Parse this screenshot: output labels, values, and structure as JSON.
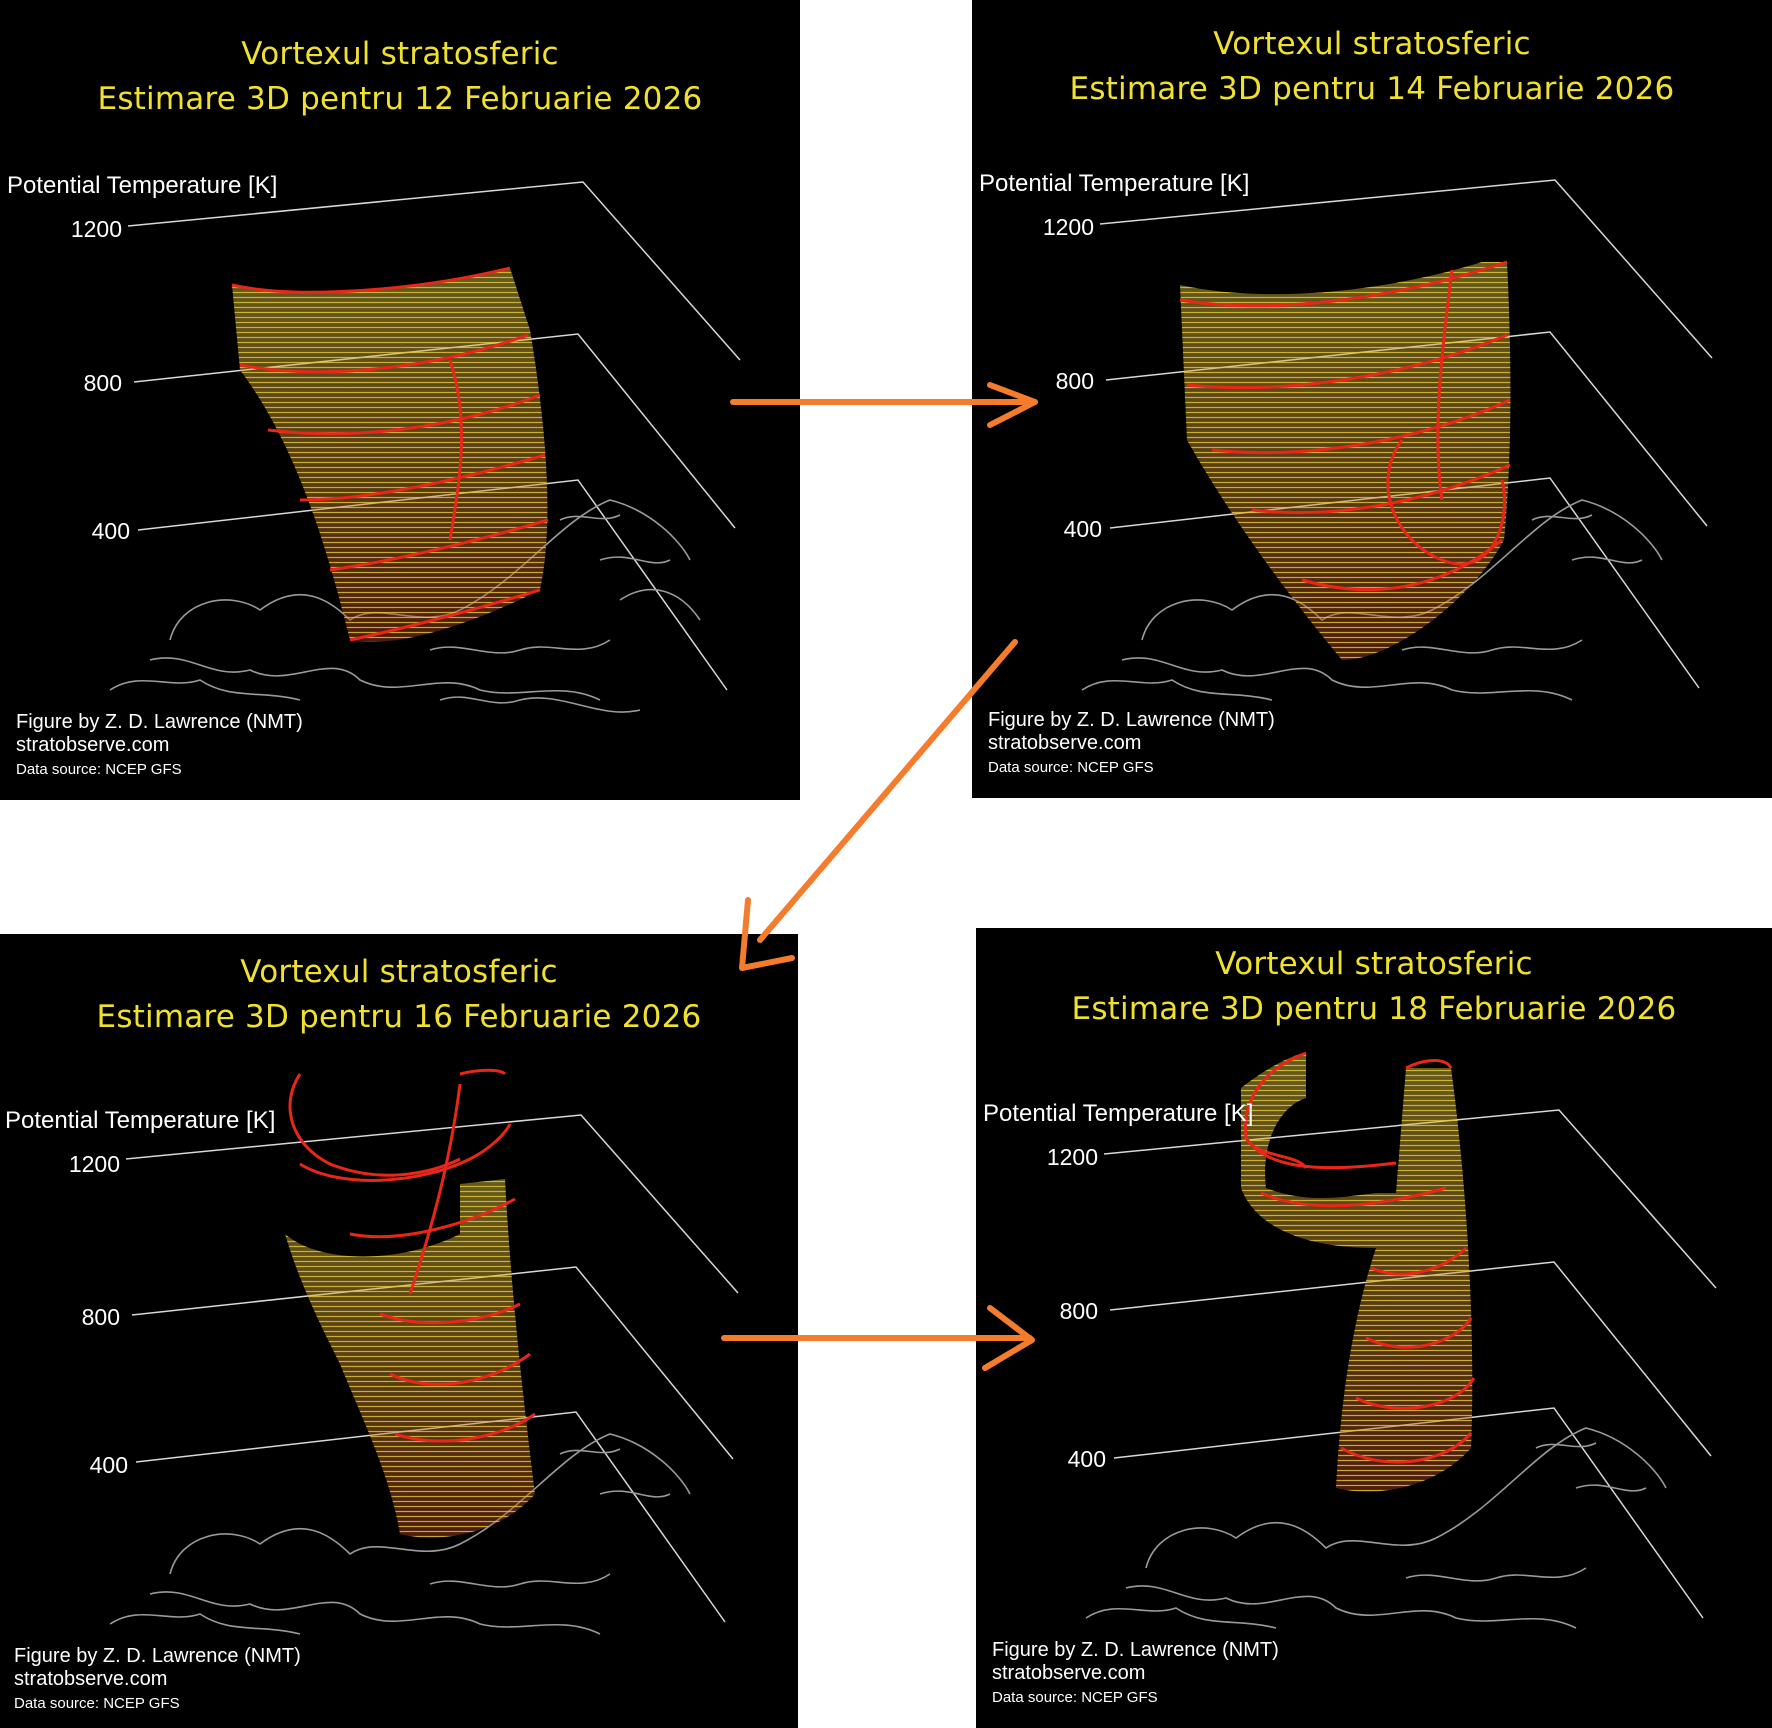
{
  "colors": {
    "title_yellow": "#f0e130",
    "arrow_orange": "#f47c2c",
    "contour_red": "#e8261a",
    "contour_yellow": "#d9c23a",
    "grid_white": "#d8d8d8",
    "land_gray": "#9a9a9a"
  },
  "panels": [
    {
      "title_line1": "Vortexul stratosferic",
      "title_line2": "Estimare 3D pentru 12 Februarie 2026",
      "axis_label": "Potential Temperature [K]",
      "ticks": [
        "1200",
        "800",
        "400"
      ],
      "credit": "Figure by Z. D. Lawrence (NMT)",
      "site": "stratobserve.com",
      "source": "Data source: NCEP GFS"
    },
    {
      "title_line1": "Vortexul stratosferic",
      "title_line2": "Estimare 3D pentru 14 Februarie 2026",
      "axis_label": "Potential Temperature [K]",
      "ticks": [
        "1200",
        "800",
        "400"
      ],
      "credit": "Figure by Z. D. Lawrence (NMT)",
      "site": "stratobserve.com",
      "source": "Data source: NCEP GFS"
    },
    {
      "title_line1": "Vortexul stratosferic",
      "title_line2": "Estimare 3D pentru 16 Februarie 2026",
      "axis_label": "Potential Temperature [K]",
      "ticks": [
        "1200",
        "800",
        "400"
      ],
      "credit": "Figure by Z. D. Lawrence (NMT)",
      "site": "stratobserve.com",
      "source": "Data source: NCEP GFS"
    },
    {
      "title_line1": "Vortexul stratosferic",
      "title_line2": "Estimare 3D pentru 18 Februarie 2026",
      "axis_label": "Potential Temperature [K]",
      "ticks": [
        "1200",
        "800",
        "400"
      ],
      "credit": "Figure by Z. D. Lawrence (NMT)",
      "site": "stratobserve.com",
      "source": "Data source: NCEP GFS"
    }
  ]
}
